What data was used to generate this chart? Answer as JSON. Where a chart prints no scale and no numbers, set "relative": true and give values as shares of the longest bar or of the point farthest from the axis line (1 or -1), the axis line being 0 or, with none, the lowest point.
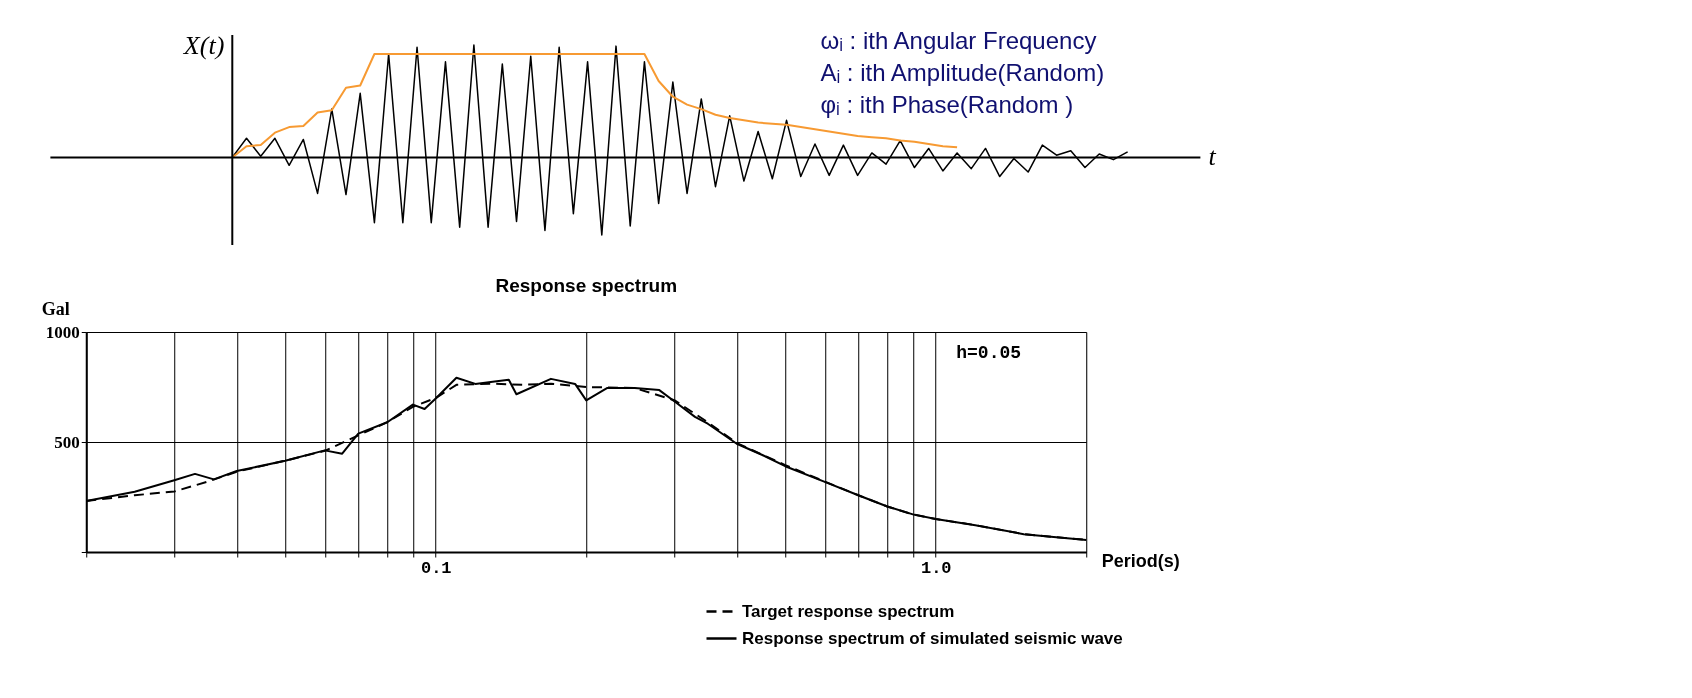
{
  "chart_data": [
    {
      "type": "line",
      "relative": true,
      "xlabel": "t",
      "ylabel": "X(t)",
      "tick_labels": false,
      "categories": [
        null,
        null,
        null,
        null,
        null,
        null,
        null,
        null,
        null,
        null,
        null,
        null,
        null,
        null,
        null,
        null,
        null,
        null,
        null,
        null,
        null,
        null,
        null,
        null,
        null,
        null,
        null,
        null,
        null,
        null,
        null,
        null,
        null,
        null,
        null,
        null,
        null,
        null,
        null,
        null,
        null,
        null,
        null,
        null,
        null,
        null,
        null,
        null,
        null,
        null,
        null,
        null,
        null,
        null,
        null,
        null,
        null,
        null,
        null,
        null,
        null,
        null,
        null,
        null
      ],
      "series": [
        {
          "color": "#000000",
          "values": [
            0,
            0.17,
            0.01,
            0.17,
            -0.07,
            0.16,
            -0.32,
            0.43,
            -0.33,
            0.57,
            -0.58,
            0.92,
            -0.58,
            0.98,
            -0.58,
            0.85,
            -0.62,
            1.0,
            -0.62,
            0.83,
            -0.57,
            0.9,
            -0.65,
            0.98,
            -0.5,
            0.85,
            -0.69,
            0.99,
            -0.61,
            0.85,
            -0.41,
            0.67,
            -0.32,
            0.52,
            -0.26,
            0.37,
            -0.21,
            0.23,
            -0.19,
            0.33,
            -0.17,
            0.12,
            -0.16,
            0.11,
            -0.16,
            0.04,
            -0.06,
            0.15,
            -0.09,
            0.08,
            -0.12,
            0.04,
            -0.1,
            0.08,
            -0.17,
            -0.01,
            -0.13,
            0.11,
            0.02,
            0.06,
            -0.09,
            0.03,
            -0.02,
            0.05
          ]
        },
        {
          "color": "#f79a32",
          "values": [
            0,
            0.1,
            0.11,
            0.22,
            0.27,
            0.28,
            0.4,
            0.42,
            0.62,
            0.64,
            0.92,
            0.92,
            0.92,
            0.92,
            0.92,
            0.92,
            0.92,
            0.92,
            0.92,
            0.92,
            0.92,
            0.92,
            0.92,
            0.92,
            0.92,
            0.92,
            0.92,
            0.92,
            0.92,
            0.92,
            0.68,
            0.54,
            0.47,
            0.43,
            0.38,
            0.35,
            0.33,
            0.31,
            0.3,
            0.29,
            0.27,
            0.25,
            0.23,
            0.21,
            0.19,
            0.18,
            0.17,
            0.15,
            0.14,
            0.12,
            0.1,
            0.09,
            null,
            null,
            null,
            null,
            null,
            null,
            null,
            null,
            null,
            null,
            null,
            null
          ]
        }
      ],
      "annotations": [
        "ωᵢ   :  ith Angular Frequency",
        "Aᵢ   :  ith Amplitude(Random)",
        "φᵢ   :  ith Phase(Random )"
      ]
    },
    {
      "type": "line",
      "title": "Response spectrum",
      "xlabel": "Period(s)",
      "ylabel": "Gal",
      "log": "x",
      "grid": true,
      "legend": "bottom right",
      "xlim": [
        0.02,
        2.0
      ],
      "xticks": [
        {
          "value": 0.02,
          "label": null
        },
        {
          "value": 0.03,
          "label": null
        },
        {
          "value": 0.04,
          "label": null
        },
        {
          "value": 0.05,
          "label": null
        },
        {
          "value": 0.06,
          "label": null
        },
        {
          "value": 0.07,
          "label": null
        },
        {
          "value": 0.08,
          "label": null
        },
        {
          "value": 0.09,
          "label": null
        },
        0.1,
        {
          "value": 0.2,
          "label": null
        },
        {
          "value": 0.3,
          "label": null
        },
        {
          "value": 0.4,
          "label": null
        },
        {
          "value": 0.5,
          "label": null
        },
        {
          "value": 0.6,
          "label": null
        },
        {
          "value": 0.7,
          "label": null
        },
        {
          "value": 0.8,
          "label": null
        },
        {
          "value": 0.9,
          "label": null
        },
        {
          "value": 1,
          "label": "1.0"
        },
        {
          "value": 2,
          "label": null
        }
      ],
      "ylim": [
        0,
        1000
      ],
      "yticks": [
        {
          "value": 0,
          "label": null
        },
        500,
        1000
      ],
      "annotations": [
        "h=0.05"
      ],
      "series": [
        {
          "name": "Target response spectrum",
          "color": "#000000",
          "line_style": "dashed",
          "x": [
            0.02,
            0.025,
            0.03,
            0.035,
            0.04,
            0.05,
            0.06,
            0.07,
            0.08,
            0.09,
            0.1,
            0.11,
            0.13,
            0.15,
            0.17,
            0.2,
            0.25,
            0.3,
            0.35,
            0.4,
            0.5,
            0.6,
            0.7,
            0.8,
            0.9,
            1.0,
            1.2,
            1.5,
            2.0
          ],
          "values": [
            232,
            258,
            275,
            320,
            365,
            415,
            460,
            530,
            590,
            660,
            700,
            760,
            765,
            760,
            765,
            750,
            745,
            690,
            590,
            495,
            395,
            320,
            258,
            207,
            171,
            150,
            122,
            81,
            55
          ]
        },
        {
          "name": "Response spectrum of simulated seismic wave",
          "color": "#000000",
          "line_style": "solid",
          "x": [
            0.02,
            0.025,
            0.03,
            0.033,
            0.036,
            0.04,
            0.05,
            0.06,
            0.065,
            0.07,
            0.08,
            0.09,
            0.095,
            0.1,
            0.11,
            0.12,
            0.13,
            0.14,
            0.145,
            0.17,
            0.19,
            0.2,
            0.22,
            0.25,
            0.28,
            0.3,
            0.33,
            0.35,
            0.4,
            0.45,
            0.5,
            0.6,
            0.7,
            0.8,
            0.9,
            1.0,
            1.2,
            1.5,
            2.0
          ],
          "values": [
            232,
            274,
            326,
            355,
            330,
            368,
            415,
            462,
            447,
            538,
            590,
            670,
            650,
            698,
            792,
            764,
            774,
            783,
            717,
            787,
            764,
            689,
            745,
            746,
            736,
            685,
            614,
            583,
            492,
            441,
            390,
            319,
            258,
            207,
            171,
            150,
            122,
            81,
            55
          ]
        }
      ]
    }
  ]
}
